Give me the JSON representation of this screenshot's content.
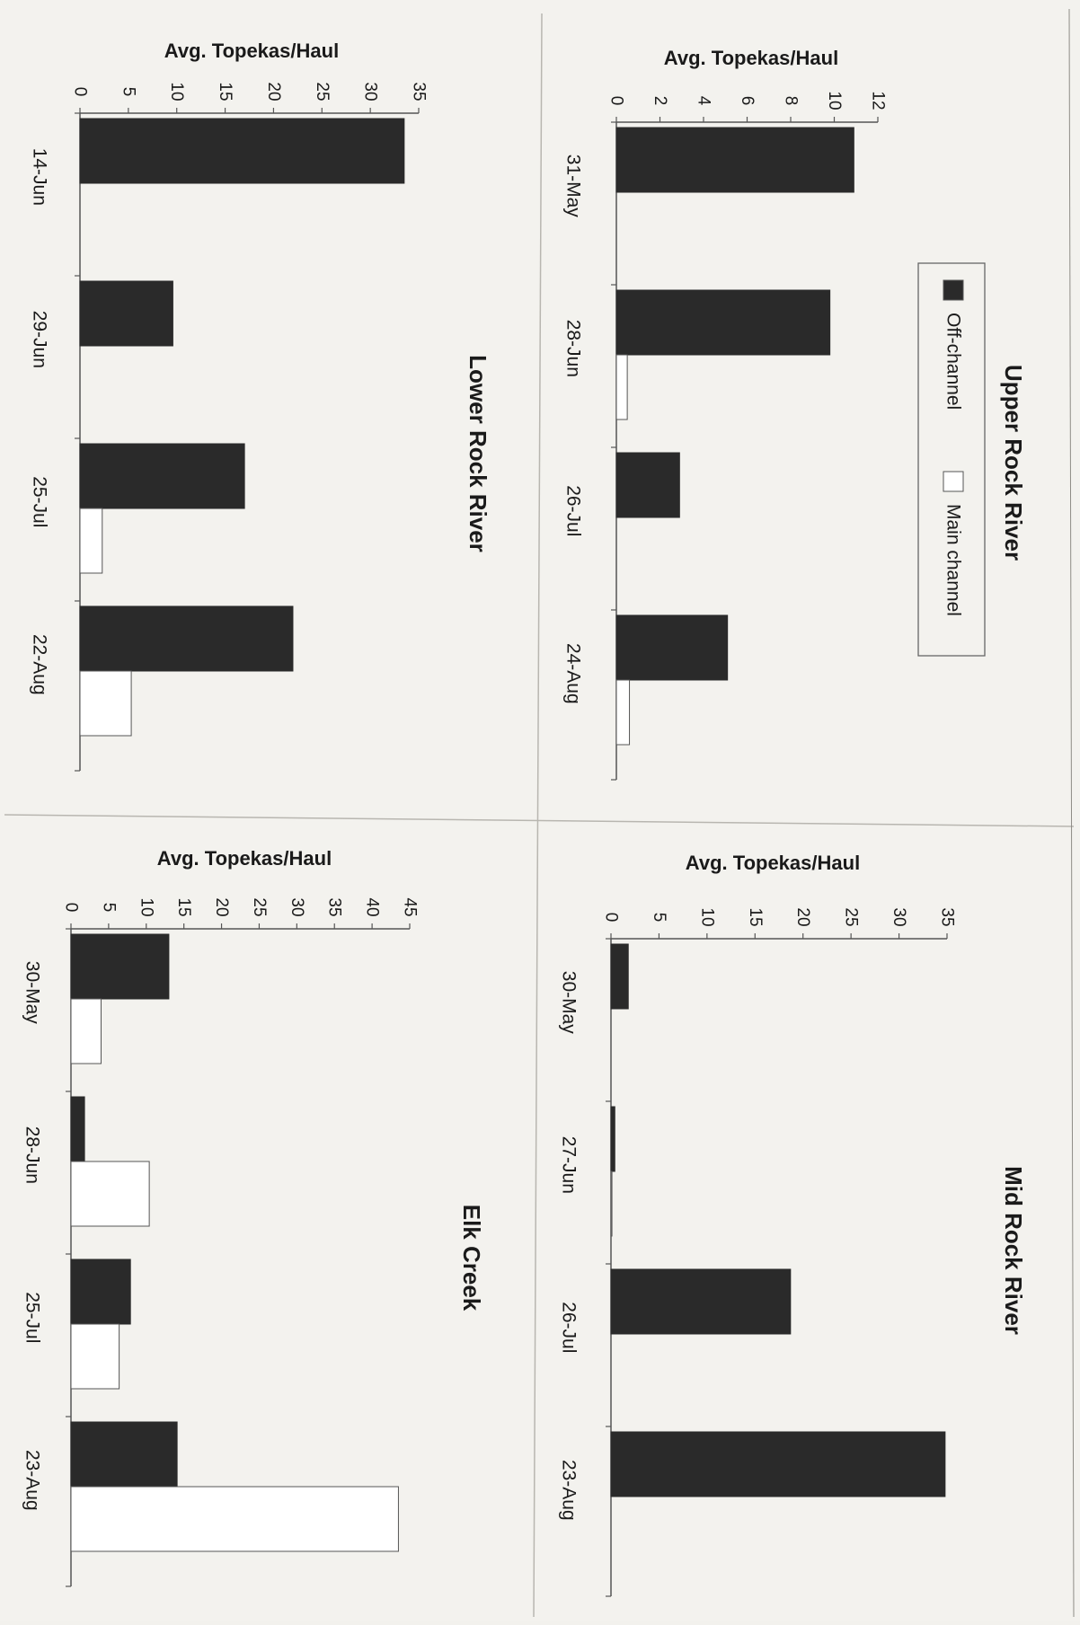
{
  "colors": {
    "off_channel": "#2a2a2a",
    "main_channel": "#ffffff",
    "axis": "#555555",
    "text": "#1a1a1a"
  },
  "legend": {
    "items": [
      "Off-channel",
      "Main channel"
    ],
    "placement": "below title"
  },
  "chart_data": [
    {
      "type": "bar",
      "title": "Upper Rock River",
      "ylabel": "Avg. Topekas/Haul",
      "ylim": [
        0,
        12
      ],
      "yticks": [
        0,
        2,
        4,
        6,
        8,
        10,
        12
      ],
      "categories": [
        "31-May",
        "28-Jun",
        "26-Jul",
        "24-Aug"
      ],
      "series": [
        {
          "name": "Off-channel",
          "values": [
            10.9,
            9.8,
            2.9,
            5.1
          ]
        },
        {
          "name": "Main channel",
          "values": [
            0,
            0.5,
            0,
            0.6
          ]
        }
      ]
    },
    {
      "type": "bar",
      "title": "Mid Rock River",
      "ylabel": "Avg. Topekas/Haul",
      "ylim": [
        0,
        35
      ],
      "yticks": [
        0,
        5,
        10,
        15,
        20,
        25,
        30,
        35
      ],
      "categories": [
        "30-May",
        "27-Jun",
        "26-Jul",
        "23-Aug"
      ],
      "series": [
        {
          "name": "Off-channel",
          "values": [
            1.8,
            0.4,
            18.7,
            34.8
          ]
        },
        {
          "name": "Main channel",
          "values": [
            0,
            0.1,
            0,
            0
          ]
        }
      ]
    },
    {
      "type": "bar",
      "title": "Lower Rock River",
      "ylabel": "Avg. Topekas/Haul",
      "ylim": [
        0,
        35
      ],
      "yticks": [
        0,
        5,
        10,
        15,
        20,
        25,
        30,
        35
      ],
      "categories": [
        "14-Jun",
        "29-Jun",
        "25-Jul",
        "22-Aug"
      ],
      "series": [
        {
          "name": "Off-channel",
          "values": [
            33.5,
            9.6,
            17,
            22
          ]
        },
        {
          "name": "Main channel",
          "values": [
            0,
            0,
            2.3,
            5.3
          ]
        }
      ]
    },
    {
      "type": "bar",
      "title": "Elk Creek",
      "ylabel": "Avg. Topekas/Haul",
      "ylim": [
        0,
        45
      ],
      "yticks": [
        0,
        5,
        10,
        15,
        20,
        25,
        30,
        35,
        40,
        45
      ],
      "categories": [
        "30-May",
        "28-Jun",
        "25-Jul",
        "23-Aug"
      ],
      "series": [
        {
          "name": "Off-channel",
          "values": [
            13,
            1.8,
            7.9,
            14.1
          ]
        },
        {
          "name": "Main channel",
          "values": [
            4,
            10.4,
            6.4,
            43.5
          ]
        }
      ]
    }
  ]
}
